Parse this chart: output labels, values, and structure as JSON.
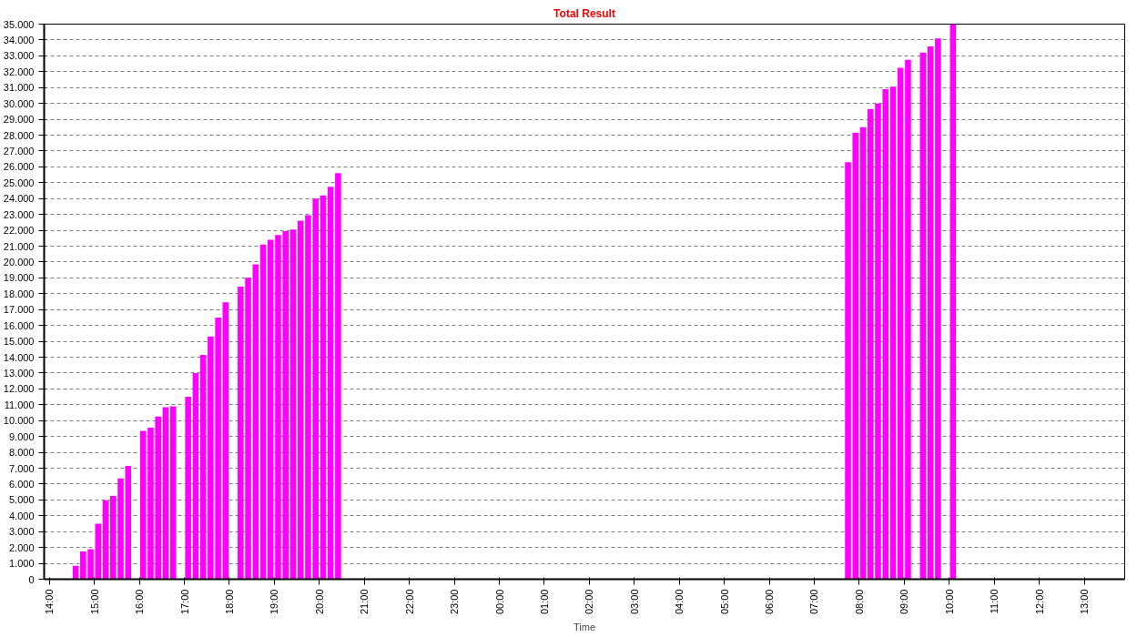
{
  "chart_data": {
    "type": "bar",
    "title": "Total Result",
    "xlabel": "Time",
    "x": [
      "2000-01-01T14:35",
      "2000-01-01T14:45",
      "2000-01-01T14:55",
      "2000-01-01T15:05",
      "2000-01-01T15:15",
      "2000-01-01T15:25",
      "2000-01-01T15:35",
      "2000-01-01T15:45",
      "2000-01-01T16:05",
      "2000-01-01T16:15",
      "2000-01-01T16:25",
      "2000-01-01T16:35",
      "2000-01-01T16:45",
      "2000-01-01T17:05",
      "2000-01-01T17:15",
      "2000-01-01T17:25",
      "2000-01-01T17:35",
      "2000-01-01T17:45",
      "2000-01-01T17:55",
      "2000-01-01T18:15",
      "2000-01-01T18:25",
      "2000-01-01T18:35",
      "2000-01-01T18:45",
      "2000-01-01T18:55",
      "2000-01-01T19:05",
      "2000-01-01T19:15",
      "2000-01-01T19:25",
      "2000-01-01T19:35",
      "2000-01-01T19:45",
      "2000-01-01T19:55",
      "2000-01-01T20:05",
      "2000-01-01T20:15",
      "2000-01-01T20:25",
      "2000-01-02T07:45",
      "2000-01-02T07:55",
      "2000-01-02T08:05",
      "2000-01-02T08:15",
      "2000-01-02T08:25",
      "2000-01-02T08:35",
      "2000-01-02T08:45",
      "2000-01-02T08:55",
      "2000-01-02T09:05",
      "2000-01-02T09:25",
      "2000-01-02T09:35",
      "2000-01-02T09:45",
      "2000-01-02T10:05"
    ],
    "series": [
      {
        "color": "#ff00ff",
        "values": [
          850,
          1750,
          1900,
          3500,
          4980,
          5250,
          6350,
          7150,
          9350,
          9550,
          10250,
          10850,
          10900,
          11500,
          13000,
          14150,
          15300,
          16500,
          17450,
          18450,
          19000,
          19850,
          21100,
          21400,
          21700,
          21950,
          22050,
          22600,
          22950,
          24000,
          24200,
          24750,
          25600,
          26300,
          28150,
          28500,
          29650,
          30000,
          30900,
          31050,
          32250,
          32750,
          33200,
          33600,
          34100,
          35000
        ]
      }
    ],
    "xlim": [
      "2000-01-01T13:53",
      "2000-01-02T13:54"
    ],
    "ylim": [
      0,
      35000
    ],
    "xticks": [
      {
        "value": "2000-01-01T14:00",
        "label": "14:00"
      },
      {
        "value": "2000-01-01T15:00",
        "label": "15:00"
      },
      {
        "value": "2000-01-01T16:00",
        "label": "16:00"
      },
      {
        "value": "2000-01-01T17:00",
        "label": "17:00"
      },
      {
        "value": "2000-01-01T18:00",
        "label": "18:00"
      },
      {
        "value": "2000-01-01T19:00",
        "label": "19:00"
      },
      {
        "value": "2000-01-01T20:00",
        "label": "20:00"
      },
      {
        "value": "2000-01-01T21:00",
        "label": "21:00"
      },
      {
        "value": "2000-01-01T22:00",
        "label": "22:00"
      },
      {
        "value": "2000-01-01T23:00",
        "label": "23:00"
      },
      {
        "value": "2000-01-02T00:00",
        "label": "00:00"
      },
      {
        "value": "2000-01-02T01:00",
        "label": "01:00"
      },
      {
        "value": "2000-01-02T02:00",
        "label": "02:00"
      },
      {
        "value": "2000-01-02T03:00",
        "label": "03:00"
      },
      {
        "value": "2000-01-02T04:00",
        "label": "04:00"
      },
      {
        "value": "2000-01-02T05:00",
        "label": "05:00"
      },
      {
        "value": "2000-01-02T06:00",
        "label": "06:00"
      },
      {
        "value": "2000-01-02T07:00",
        "label": "07:00"
      },
      {
        "value": "2000-01-02T08:00",
        "label": "08:00"
      },
      {
        "value": "2000-01-02T09:00",
        "label": "09:00"
      },
      {
        "value": "2000-01-02T10:00",
        "label": "10:00"
      },
      {
        "value": "2000-01-02T11:00",
        "label": "11:00"
      },
      {
        "value": "2000-01-02T12:00",
        "label": "12:00"
      },
      {
        "value": "2000-01-02T13:00",
        "label": "13:00"
      }
    ],
    "yticks": [
      0,
      {
        "value": 1000,
        "label": "1.000"
      },
      {
        "value": 2000,
        "label": "2.000"
      },
      {
        "value": 3000,
        "label": "3.000"
      },
      {
        "value": 4000,
        "label": "4.000"
      },
      {
        "value": 5000,
        "label": "5.000"
      },
      {
        "value": 6000,
        "label": "6.000"
      },
      {
        "value": 7000,
        "label": "7.000"
      },
      {
        "value": 8000,
        "label": "8.000"
      },
      {
        "value": 9000,
        "label": "9.000"
      },
      {
        "value": 10000,
        "label": "10.000"
      },
      {
        "value": 11000,
        "label": "11.000"
      },
      {
        "value": 12000,
        "label": "12.000"
      },
      {
        "value": 13000,
        "label": "13.000"
      },
      {
        "value": 14000,
        "label": "14.000"
      },
      {
        "value": 15000,
        "label": "15.000"
      },
      {
        "value": 16000,
        "label": "16.000"
      },
      {
        "value": 17000,
        "label": "17.000"
      },
      {
        "value": 18000,
        "label": "18.000"
      },
      {
        "value": 19000,
        "label": "19.000"
      },
      {
        "value": 20000,
        "label": "20.000"
      },
      {
        "value": 21000,
        "label": "21.000"
      },
      {
        "value": 22000,
        "label": "22.000"
      },
      {
        "value": 23000,
        "label": "23.000"
      },
      {
        "value": 24000,
        "label": "24.000"
      },
      {
        "value": 25000,
        "label": "25.000"
      },
      {
        "value": 26000,
        "label": "26.000"
      },
      {
        "value": 27000,
        "label": "27.000"
      },
      {
        "value": 28000,
        "label": "28.000"
      },
      {
        "value": 29000,
        "label": "29.000"
      },
      {
        "value": 30000,
        "label": "30.000"
      },
      {
        "value": 31000,
        "label": "31.000"
      },
      {
        "value": 32000,
        "label": "32.000"
      },
      {
        "value": 33000,
        "label": "33.000"
      },
      {
        "value": 34000,
        "label": "34.000"
      },
      {
        "value": 35000,
        "label": "35.000"
      }
    ],
    "grid": "y"
  }
}
